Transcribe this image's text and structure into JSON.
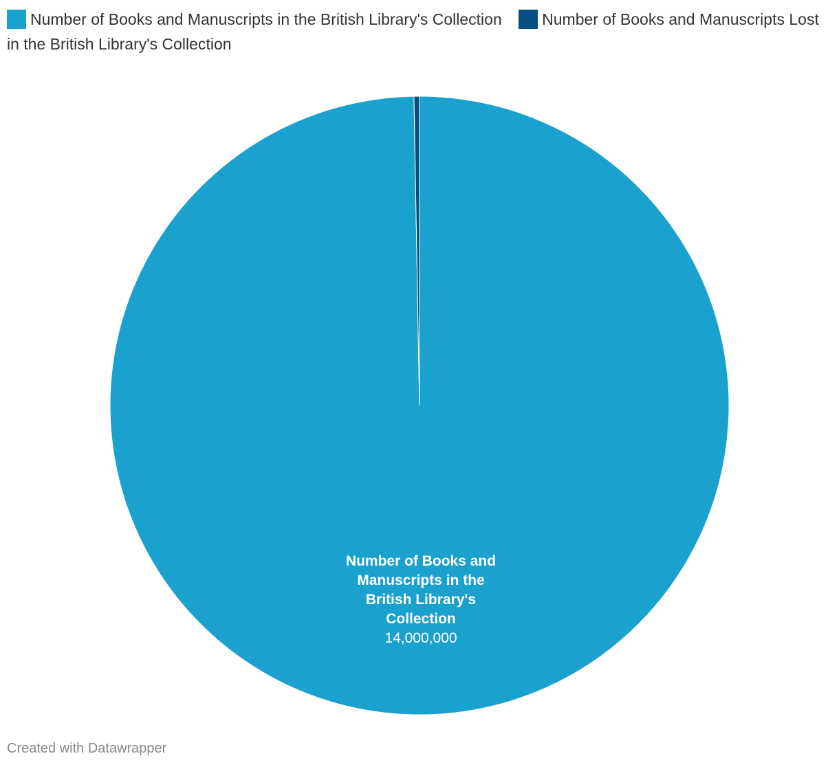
{
  "chart_data": {
    "type": "pie",
    "categories": [
      "Number of Books and Manuscripts in the British Library's Collection",
      "Number of Books and Manuscripts Lost in the British Library's Collection"
    ],
    "values": [
      14000000,
      40000
    ],
    "colors": [
      "#1aa1cd",
      "#065081"
    ],
    "value_labels": [
      "14,000,000",
      ""
    ],
    "legend_position": "top-left"
  },
  "slice_label": {
    "lines": [
      "Number of Books and",
      "Manuscripts in the",
      "British Library's",
      "Collection"
    ],
    "value": "14,000,000"
  },
  "footer": {
    "credit": "Created with Datawrapper"
  }
}
